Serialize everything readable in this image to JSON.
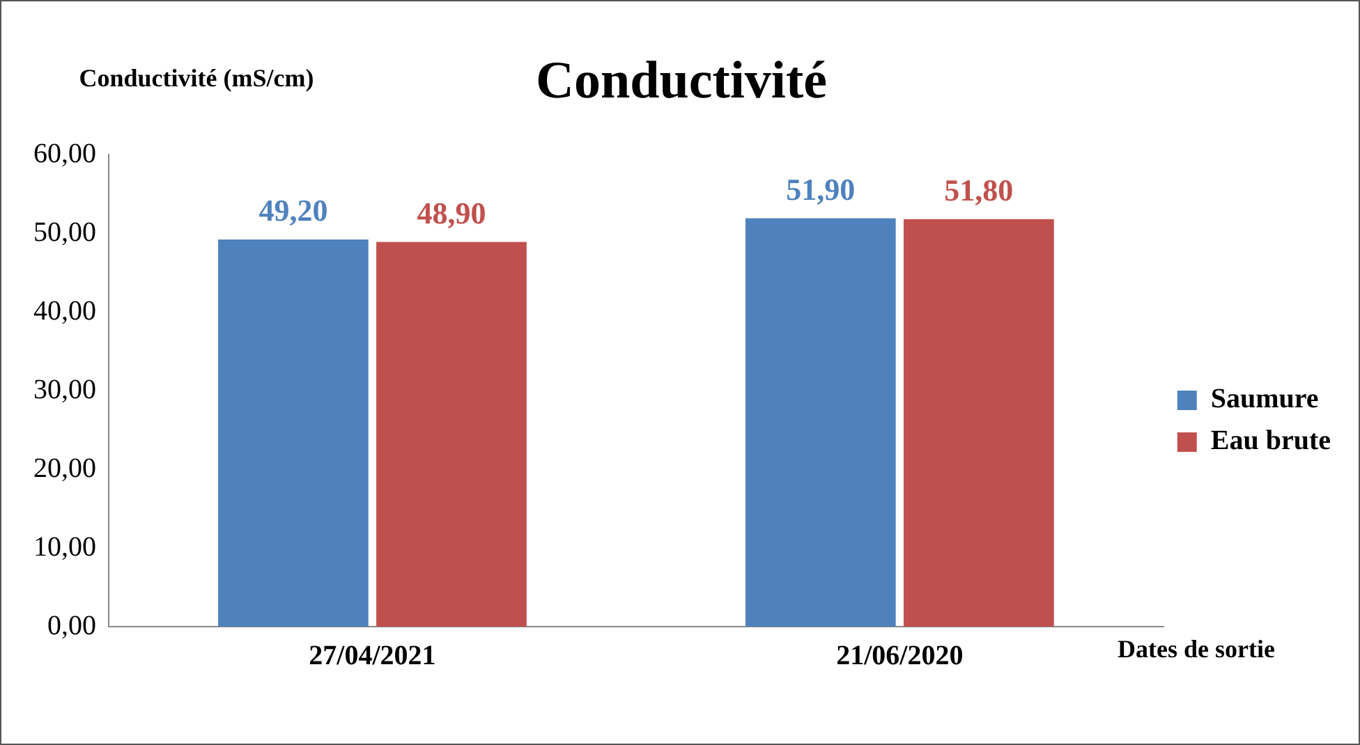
{
  "chart_data": {
    "type": "bar",
    "title": "Conductivité",
    "ylabel": "Conductivité (mS/cm)",
    "xlabel": "Dates de sortie",
    "categories": [
      "27/04/2021",
      "21/06/2020"
    ],
    "series": [
      {
        "name": "Saumure",
        "color": "#4f81bd",
        "values": [
          49.2,
          51.9
        ],
        "value_labels": [
          "49,20",
          "51,90"
        ]
      },
      {
        "name": "Eau brute",
        "color": "#c0504d",
        "values": [
          48.9,
          51.8
        ],
        "value_labels": [
          "48,90",
          "51,80"
        ]
      }
    ],
    "ylim": [
      0,
      60
    ],
    "yticks": [
      {
        "value": 0,
        "label": "0,00"
      },
      {
        "value": 10,
        "label": "10,00"
      },
      {
        "value": 20,
        "label": "20,00"
      },
      {
        "value": 30,
        "label": "30,00"
      },
      {
        "value": 40,
        "label": "40,00"
      },
      {
        "value": 50,
        "label": "50,00"
      },
      {
        "value": 60,
        "label": "60,00"
      }
    ],
    "grid": false,
    "legend": "right"
  }
}
